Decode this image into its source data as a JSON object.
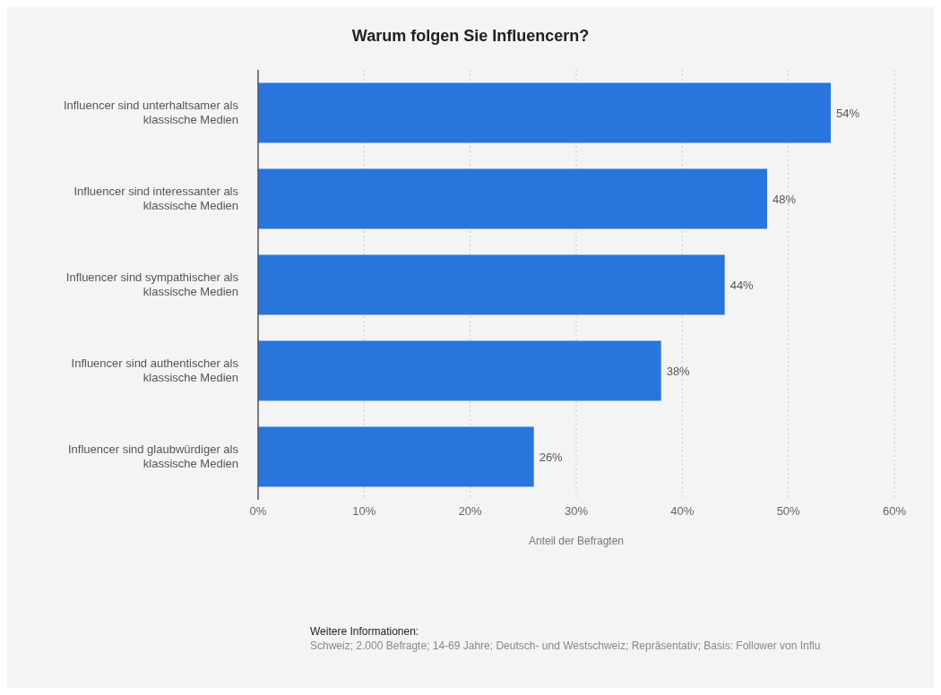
{
  "chart_data": {
    "type": "bar",
    "orientation": "horizontal",
    "title": "Warum folgen Sie Influencern?",
    "xlabel": "Anteil der Befragten",
    "categories": [
      "Influencer sind unterhaltsamer als klassische Medien",
      "Influencer sind interessanter als klassische Medien",
      "Influencer sind sympathischer als klassische Medien",
      "Influencer sind authentischer als klassische Medien",
      "Influencer sind glaubwürdiger als klassische Medien"
    ],
    "values": [
      54,
      48,
      44,
      38,
      26
    ],
    "value_labels": [
      "54%",
      "48%",
      "44%",
      "38%",
      "26%"
    ],
    "color": "#2876dd",
    "xlim": [
      0,
      60
    ],
    "xticks": [
      {
        "value": 0,
        "label": "0%"
      },
      {
        "value": 10,
        "label": "10%"
      },
      {
        "value": 20,
        "label": "20%"
      },
      {
        "value": 30,
        "label": "30%"
      },
      {
        "value": 40,
        "label": "40%"
      },
      {
        "value": 50,
        "label": "50%"
      },
      {
        "value": 60,
        "label": "60%"
      }
    ],
    "grid": "x",
    "annotations": [
      "Weitere Informationen:",
      "Schweiz; 2.000 Befragte; 14-69 Jahre; Deutsch- und Westschweiz; Repräsentativ; Basis: Follower von Influ"
    ]
  }
}
